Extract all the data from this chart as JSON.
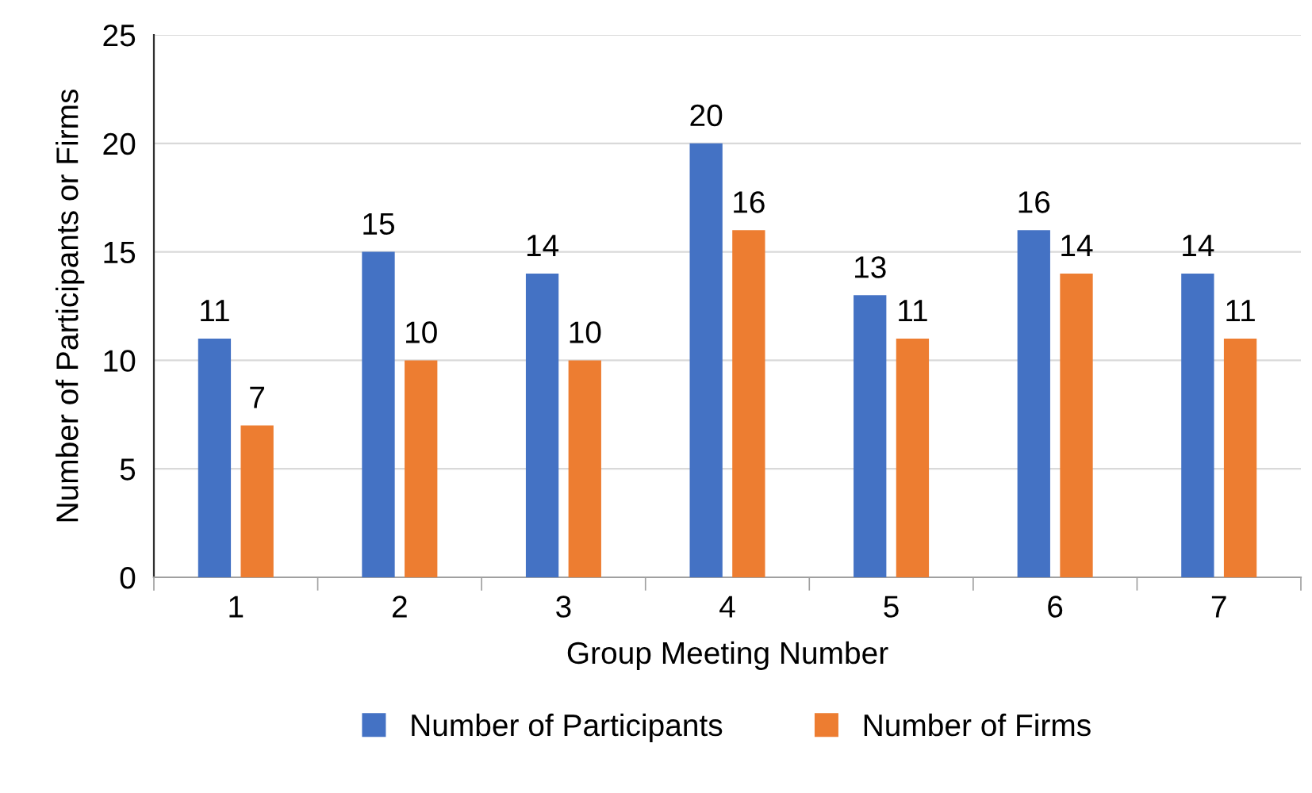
{
  "chart_data": {
    "type": "bar",
    "xlabel": "Group Meeting Number",
    "ylabel": "Number of Participants or Firms",
    "categories": [
      "1",
      "2",
      "3",
      "4",
      "5",
      "6",
      "7"
    ],
    "series": [
      {
        "name": "Number of Participants",
        "color": "#4472c4",
        "values": [
          11,
          15,
          14,
          20,
          13,
          16,
          14
        ]
      },
      {
        "name": "Number of Firms",
        "color": "#ed7d31",
        "values": [
          7,
          10,
          10,
          16,
          11,
          14,
          11
        ]
      }
    ],
    "ylim": [
      0,
      25
    ],
    "yticks": [
      0,
      5,
      10,
      15,
      20,
      25
    ],
    "grid": "y",
    "legend": "bottom",
    "data_labels": true
  }
}
